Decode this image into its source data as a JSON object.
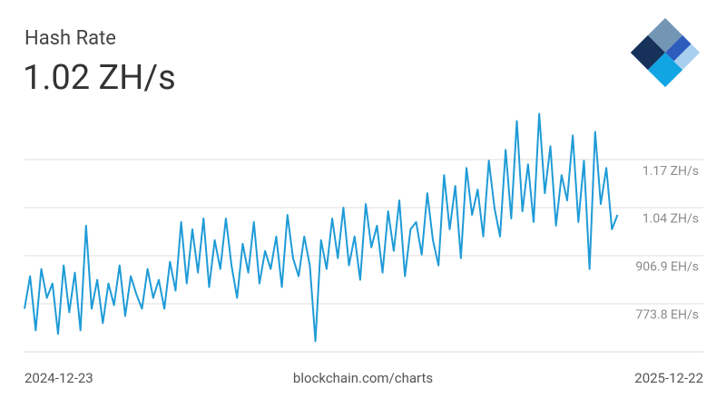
{
  "chart_data": {
    "type": "line",
    "title": "Hash Rate",
    "subtitle": "1.02 ZH/s",
    "source": "blockchain.com/charts",
    "color": "#1f9bd7",
    "grid": true,
    "xlim": [
      "2024-12-23",
      "2025-12-22"
    ],
    "xticks": [
      "2024-12-23",
      "2025-12-22"
    ],
    "ylim": [
      640.7,
      1310
    ],
    "yticks": [
      {
        "value": 773.8,
        "label": "773.8 EH/s"
      },
      {
        "value": 906.9,
        "label": "906.9 EH/s"
      },
      {
        "value": 1040,
        "label": "1.04 ZH/s"
      },
      {
        "value": 1173,
        "label": "1.17 ZH/s"
      }
    ],
    "x": [
      "2024-12-23",
      "2024-12-26",
      "2024-12-29",
      "2025-01-01",
      "2025-01-04",
      "2025-01-07",
      "2025-01-10",
      "2025-01-13",
      "2025-01-16",
      "2025-01-19",
      "2025-01-22",
      "2025-01-25",
      "2025-01-28",
      "2025-01-31",
      "2025-02-03",
      "2025-02-06",
      "2025-02-09",
      "2025-02-12",
      "2025-02-15",
      "2025-02-18",
      "2025-02-21",
      "2025-02-24",
      "2025-02-27",
      "2025-03-02",
      "2025-03-05",
      "2025-03-08",
      "2025-03-11",
      "2025-03-14",
      "2025-03-17",
      "2025-03-20",
      "2025-03-23",
      "2025-03-26",
      "2025-03-29",
      "2025-04-01",
      "2025-04-04",
      "2025-04-07",
      "2025-04-10",
      "2025-04-13",
      "2025-04-16",
      "2025-04-19",
      "2025-04-22",
      "2025-04-25",
      "2025-04-28",
      "2025-05-01",
      "2025-05-04",
      "2025-05-07",
      "2025-05-10",
      "2025-05-13",
      "2025-05-16",
      "2025-05-19",
      "2025-05-22",
      "2025-05-25",
      "2025-05-28",
      "2025-05-31",
      "2025-06-03",
      "2025-06-06",
      "2025-06-09",
      "2025-06-12",
      "2025-06-15",
      "2025-06-18",
      "2025-06-21",
      "2025-06-24",
      "2025-06-27",
      "2025-06-30",
      "2025-07-03",
      "2025-07-06",
      "2025-07-09",
      "2025-07-12",
      "2025-07-15",
      "2025-07-18",
      "2025-07-21",
      "2025-07-24",
      "2025-07-27",
      "2025-07-30",
      "2025-08-02",
      "2025-08-05",
      "2025-08-08",
      "2025-08-11",
      "2025-08-14",
      "2025-08-17",
      "2025-08-20",
      "2025-08-23",
      "2025-08-26",
      "2025-08-29",
      "2025-09-01",
      "2025-09-04",
      "2025-09-07",
      "2025-09-10",
      "2025-09-13",
      "2025-09-16",
      "2025-09-19",
      "2025-09-22",
      "2025-09-25",
      "2025-09-28",
      "2025-10-01",
      "2025-10-04",
      "2025-10-07",
      "2025-10-10",
      "2025-10-13",
      "2025-10-16",
      "2025-10-19",
      "2025-10-22",
      "2025-10-25",
      "2025-10-28",
      "2025-10-31",
      "2025-11-03",
      "2025-11-06"
    ],
    "values": [
      760,
      850,
      700,
      870,
      790,
      830,
      690,
      880,
      750,
      860,
      700,
      990,
      760,
      840,
      720,
      830,
      770,
      880,
      740,
      850,
      800,
      760,
      870,
      790,
      840,
      760,
      890,
      810,
      1000,
      830,
      980,
      860,
      1010,
      820,
      950,
      870,
      1010,
      880,
      790,
      940,
      860,
      1000,
      830,
      920,
      870,
      960,
      820,
      1020,
      900,
      850,
      960,
      880,
      670,
      950,
      870,
      1010,
      900,
      1040,
      880,
      960,
      840,
      1050,
      930,
      990,
      860,
      1030,
      920,
      1060,
      850,
      980,
      1000,
      910,
      1080,
      950,
      880,
      1130,
      980,
      1100,
      900,
      1150,
      1020,
      1090,
      960,
      1170,
      1040,
      960,
      1200,
      1010,
      1280,
      1030,
      1160,
      1000,
      1300,
      1080,
      1210,
      990,
      1130,
      1060,
      1240,
      1000,
      1170,
      870,
      1250,
      1050,
      1150,
      980,
      1020
    ]
  }
}
